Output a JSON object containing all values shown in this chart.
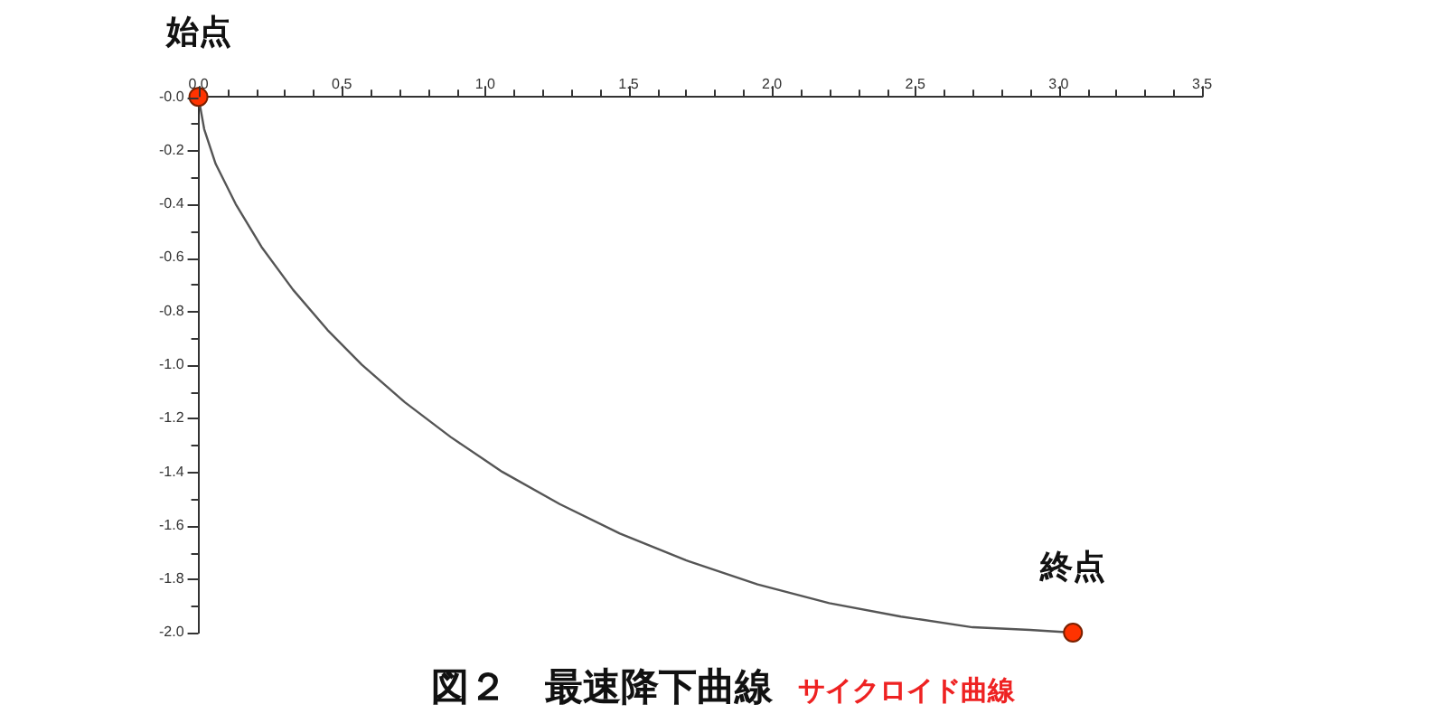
{
  "chart_data": {
    "type": "line",
    "title": "図２　最速降下曲線",
    "subtitle": "サイクロイド曲線",
    "xlim": [
      0,
      3.5
    ],
    "xticks": [
      {
        "value": 0,
        "label": "0.0"
      },
      {
        "value": 0.1,
        "label": null
      },
      {
        "value": 0.2,
        "label": null
      },
      {
        "value": 0.3,
        "label": null
      },
      {
        "value": 0.4,
        "label": null
      },
      0.5,
      {
        "value": 0.6,
        "label": null
      },
      {
        "value": 0.7,
        "label": null
      },
      {
        "value": 0.8,
        "label": null
      },
      {
        "value": 0.9,
        "label": null
      },
      {
        "value": 1,
        "label": "1.0"
      },
      {
        "value": 1.1,
        "label": null
      },
      {
        "value": 1.2,
        "label": null
      },
      {
        "value": 1.3,
        "label": null
      },
      {
        "value": 1.4,
        "label": null
      },
      1.5,
      {
        "value": 1.6,
        "label": null
      },
      {
        "value": 1.7,
        "label": null
      },
      {
        "value": 1.8,
        "label": null
      },
      {
        "value": 1.9,
        "label": null
      },
      {
        "value": 2,
        "label": "2.0"
      },
      {
        "value": 2.1,
        "label": null
      },
      {
        "value": 2.2,
        "label": null
      },
      {
        "value": 2.3,
        "label": null
      },
      {
        "value": 2.4,
        "label": null
      },
      2.5,
      {
        "value": 2.6,
        "label": null
      },
      {
        "value": 2.7,
        "label": null
      },
      {
        "value": 2.8,
        "label": null
      },
      {
        "value": 2.9,
        "label": null
      },
      {
        "value": 3,
        "label": "3.0"
      },
      {
        "value": 3.1,
        "label": null
      },
      {
        "value": 3.2,
        "label": null
      },
      {
        "value": 3.3,
        "label": null
      },
      {
        "value": 3.4,
        "label": null
      },
      3.5
    ],
    "ylim": [
      -2,
      0
    ],
    "yticks": [
      {
        "value": 0,
        "label": "-0.0"
      },
      {
        "value": -0.1,
        "label": null
      },
      -0.2,
      {
        "value": -0.3,
        "label": null
      },
      -0.4,
      {
        "value": -0.5,
        "label": null
      },
      -0.6,
      {
        "value": -0.7,
        "label": null
      },
      -0.8,
      {
        "value": -0.9,
        "label": null
      },
      {
        "value": -1,
        "label": "-1.0"
      },
      {
        "value": -1.1,
        "label": null
      },
      -1.2,
      {
        "value": -1.3,
        "label": null
      },
      -1.4,
      {
        "value": -1.5,
        "label": null
      },
      -1.6,
      {
        "value": -1.7,
        "label": null
      },
      -1.8,
      {
        "value": -1.9,
        "label": null
      },
      {
        "value": -2,
        "label": "-2.0"
      }
    ],
    "series": [
      {
        "type": "line",
        "color": "#555555",
        "marker": "none",
        "x": [
          0,
          0.02,
          0.06,
          0.13,
          0.22,
          0.33,
          0.45,
          0.57,
          0.72,
          0.88,
          1.06,
          1.26,
          1.47,
          1.7,
          1.95,
          2.2,
          2.45,
          2.7,
          2.9,
          3.05
        ],
        "values": [
          0,
          -0.12,
          -0.25,
          -0.4,
          -0.56,
          -0.72,
          -0.87,
          -1.0,
          -1.14,
          -1.27,
          -1.4,
          -1.52,
          -1.63,
          -1.73,
          -1.82,
          -1.89,
          -1.94,
          -1.98,
          -1.99,
          -2.0
        ]
      },
      {
        "type": "scatter",
        "color": "#ff3300",
        "marker": "circle",
        "x": [
          0,
          3.05
        ],
        "values": [
          0,
          -2.0
        ]
      }
    ],
    "annotations": [
      {
        "text": "始点",
        "x": 0,
        "y": 0
      },
      {
        "text": "終点",
        "x": 3.05,
        "y": -2.0
      }
    ]
  }
}
